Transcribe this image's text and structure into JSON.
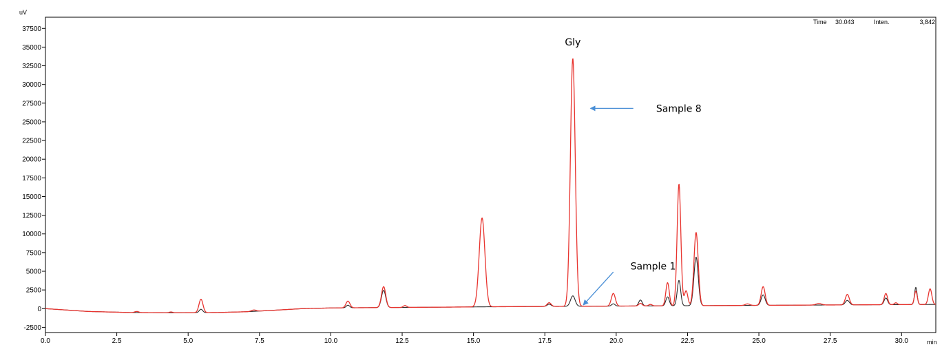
{
  "chart_data": {
    "type": "line",
    "ylabel": "uV",
    "xlabel": "min",
    "xlim": [
      0,
      31.2
    ],
    "ylim": [
      -3200,
      39000
    ],
    "xticks": [
      0,
      2.5,
      5,
      7.5,
      10,
      12.5,
      15,
      17.5,
      20,
      22.5,
      25,
      27.5,
      30
    ],
    "xtick_labels": [
      "0.0",
      "2.5",
      "5.0",
      "7.5",
      "10.0",
      "12.5",
      "15.0",
      "17.5",
      "20.0",
      "22.5",
      "25.0",
      "27.5",
      "30.0"
    ],
    "yticks": [
      -2500,
      0,
      2500,
      5000,
      7500,
      10000,
      12500,
      15000,
      17500,
      20000,
      22500,
      25000,
      27500,
      30000,
      32500,
      35000,
      37500
    ],
    "ytick_labels": [
      "-2500",
      "0",
      "2500",
      "5000",
      "7500",
      "10000",
      "12500",
      "15000",
      "17500",
      "20000",
      "22500",
      "25000",
      "27500",
      "30000",
      "32500",
      "35000",
      "37500"
    ],
    "baseline": [
      [
        0,
        0
      ],
      [
        1.5,
        -380
      ],
      [
        3,
        -520
      ],
      [
        4.5,
        -560
      ],
      [
        6,
        -520
      ],
      [
        7,
        -420
      ],
      [
        8,
        -220
      ],
      [
        9,
        0
      ],
      [
        10,
        90
      ],
      [
        12,
        150
      ],
      [
        14,
        200
      ],
      [
        16,
        260
      ],
      [
        18,
        300
      ],
      [
        20,
        340
      ],
      [
        22,
        380
      ],
      [
        24,
        420
      ],
      [
        26,
        460
      ],
      [
        28,
        500
      ],
      [
        30,
        540
      ],
      [
        31.2,
        560
      ]
    ],
    "series": [
      {
        "color": "#e8332e",
        "peaks": [
          [
            3.2,
            150,
            0.07
          ],
          [
            4.4,
            110,
            0.06
          ],
          [
            5.45,
            1800,
            0.07
          ],
          [
            7.3,
            180,
            0.08
          ],
          [
            10.6,
            900,
            0.07
          ],
          [
            11.85,
            2800,
            0.075
          ],
          [
            12.6,
            250,
            0.06
          ],
          [
            15.3,
            11900,
            0.1
          ],
          [
            17.65,
            500,
            0.07
          ],
          [
            18.48,
            33200,
            0.085
          ],
          [
            19.9,
            1700,
            0.07
          ],
          [
            20.85,
            350,
            0.06
          ],
          [
            21.2,
            200,
            0.06
          ],
          [
            21.8,
            3100,
            0.06
          ],
          [
            22.2,
            16300,
            0.065
          ],
          [
            22.45,
            2000,
            0.06
          ],
          [
            22.8,
            9800,
            0.075
          ],
          [
            24.6,
            200,
            0.08
          ],
          [
            25.15,
            2500,
            0.07
          ],
          [
            27.1,
            200,
            0.1
          ],
          [
            28.1,
            1400,
            0.07
          ],
          [
            29.45,
            1500,
            0.06
          ],
          [
            29.8,
            250,
            0.05
          ],
          [
            30.5,
            1800,
            0.05
          ],
          [
            31.0,
            2100,
            0.06
          ]
        ]
      },
      {
        "color": "#2a2a2a",
        "peaks": [
          [
            5.45,
            450,
            0.06
          ],
          [
            10.6,
            350,
            0.06
          ],
          [
            11.85,
            2300,
            0.075
          ],
          [
            17.65,
            300,
            0.07
          ],
          [
            18.48,
            1400,
            0.08
          ],
          [
            19.9,
            300,
            0.06
          ],
          [
            20.85,
            800,
            0.06
          ],
          [
            21.8,
            1200,
            0.06
          ],
          [
            22.2,
            3400,
            0.06
          ],
          [
            22.8,
            6500,
            0.075
          ],
          [
            25.15,
            1400,
            0.07
          ],
          [
            28.1,
            600,
            0.07
          ],
          [
            29.45,
            900,
            0.06
          ],
          [
            30.5,
            2300,
            0.045
          ]
        ]
      }
    ],
    "annotations": [
      {
        "text": "Gly",
        "at": [
          18.48,
          35700
        ]
      },
      {
        "text": "Sample 8",
        "at": [
          21.4,
          26800
        ],
        "arrow_from": [
          20.6,
          26800
        ],
        "arrow_to": [
          19.1,
          26800
        ]
      },
      {
        "text": "Sample 1",
        "at": [
          20.5,
          5700
        ],
        "arrow_from": [
          19.9,
          4900
        ],
        "arrow_to": [
          18.85,
          500
        ]
      }
    ],
    "readout": {
      "time_label": "Time",
      "time_value": "30.043",
      "inten_label": "Inten.",
      "inten_value": "3,842"
    }
  }
}
